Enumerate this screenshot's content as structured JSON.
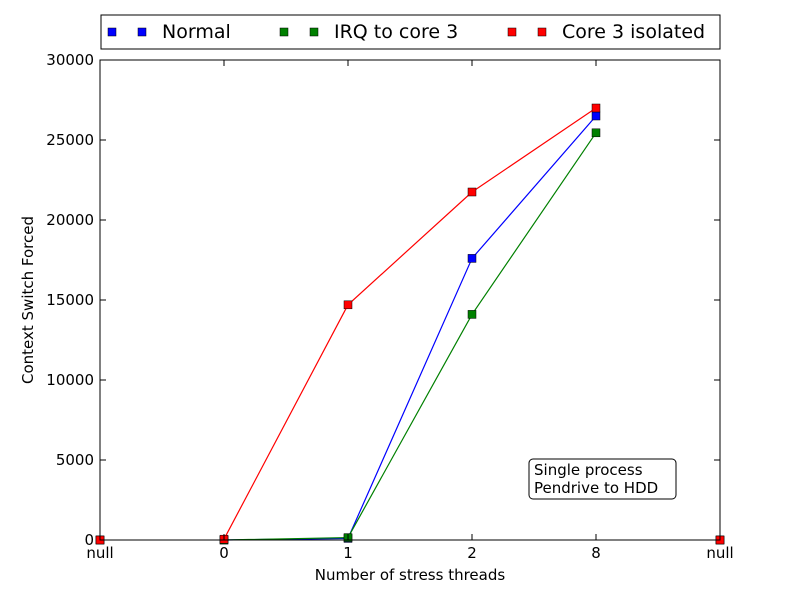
{
  "chart_data": {
    "type": "line",
    "categories": [
      "null",
      "0",
      "1",
      "2",
      "8",
      "null"
    ],
    "xlabel": "Number of stress threads",
    "ylabel": "Context Switch Forced",
    "ylim": [
      0,
      30000
    ],
    "yticks": [
      0,
      5000,
      10000,
      15000,
      20000,
      25000,
      30000
    ],
    "grid": false,
    "legend_position": "top",
    "annotation": [
      "Single process",
      "Pendrive to HDD"
    ],
    "series": [
      {
        "name": "Normal",
        "color": "#0000ff",
        "values": [
          0,
          0,
          100,
          17600,
          26500,
          0
        ]
      },
      {
        "name": "IRQ to core 3",
        "color": "#008000",
        "values": [
          0,
          0,
          150,
          14100,
          25450,
          0
        ]
      },
      {
        "name": "Core 3 isolated",
        "color": "#ff0000",
        "values": [
          0,
          50,
          14700,
          21750,
          27000,
          0
        ]
      }
    ]
  }
}
